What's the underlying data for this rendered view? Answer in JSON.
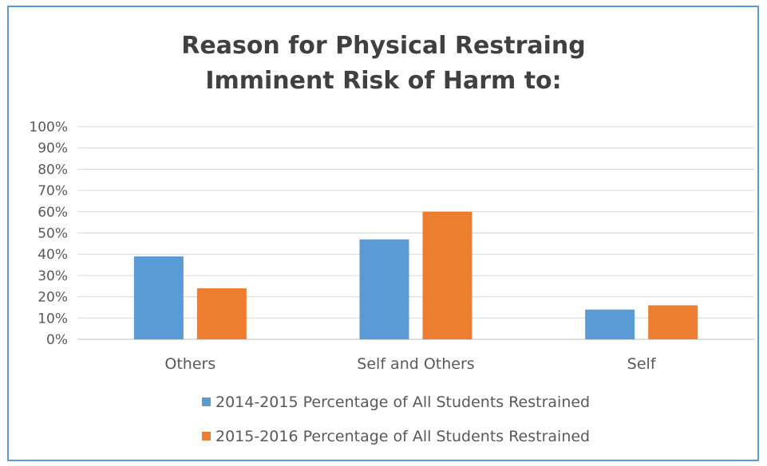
{
  "chart_data": {
    "type": "bar",
    "title_lines": [
      "Reason for Physical Restraing",
      "Imminent Risk of Harm to:"
    ],
    "categories": [
      "Others",
      "Self and Others",
      "Self"
    ],
    "series": [
      {
        "name": "2014-2015 Percentage of All Students Restrained",
        "values": [
          39,
          47,
          14
        ]
      },
      {
        "name": "2015-2016 Percentage of All Students Restrained",
        "values": [
          24,
          60,
          16
        ]
      }
    ],
    "ylim": [
      0,
      100
    ],
    "yticks": [
      "0%",
      "10%",
      "20%",
      "30%",
      "40%",
      "50%",
      "60%",
      "70%",
      "80%",
      "90%",
      "100%"
    ],
    "grid": true,
    "legend_position": "bottom",
    "colors": [
      "#5b9bd5",
      "#ed7d31"
    ]
  }
}
